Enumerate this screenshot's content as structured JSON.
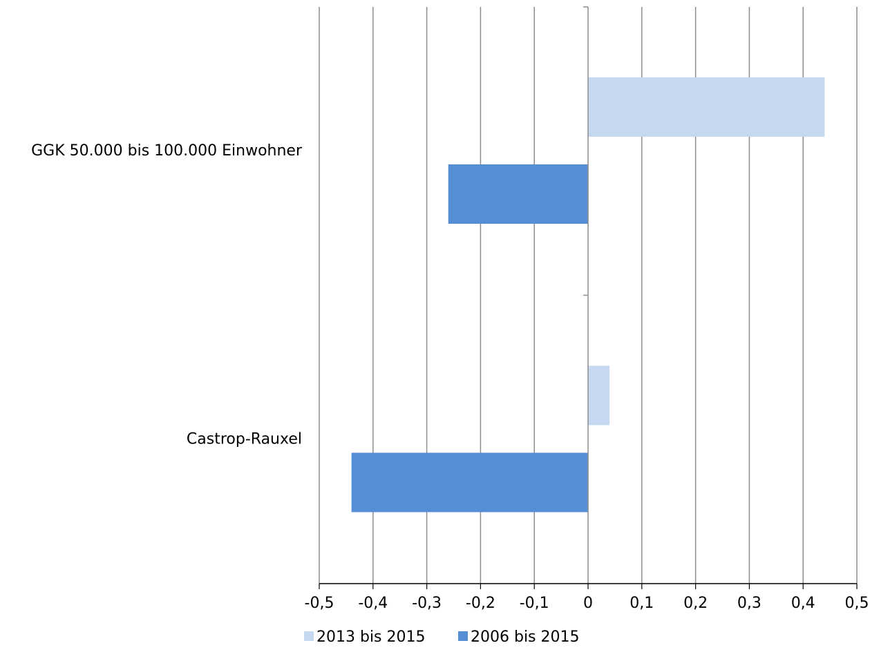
{
  "chart_data": {
    "type": "bar",
    "orientation": "horizontal",
    "categories": [
      "GGK 50.000 bis 100.000 Einwohner",
      "Castrop-Rauxel"
    ],
    "series": [
      {
        "name": "2013 bis 2015",
        "color": "#c6d9f1",
        "values": [
          0.44,
          0.04
        ]
      },
      {
        "name": "2006 bis 2015",
        "color": "#558ed5",
        "values": [
          -0.26,
          -0.44
        ]
      }
    ],
    "xlim": [
      -0.5,
      0.5
    ],
    "xticks": [
      -0.5,
      -0.4,
      -0.3,
      -0.2,
      -0.1,
      0,
      0.1,
      0.2,
      0.3,
      0.4,
      0.5
    ],
    "xtick_labels": [
      "-0,5",
      "-0,4",
      "-0,3",
      "-0,2",
      "-0,1",
      "0",
      "0,1",
      "0,2",
      "0,3",
      "0,4",
      "0,5"
    ],
    "grid": "vertical",
    "legend": "bottom",
    "title": "",
    "xlabel": "",
    "ylabel": ""
  }
}
